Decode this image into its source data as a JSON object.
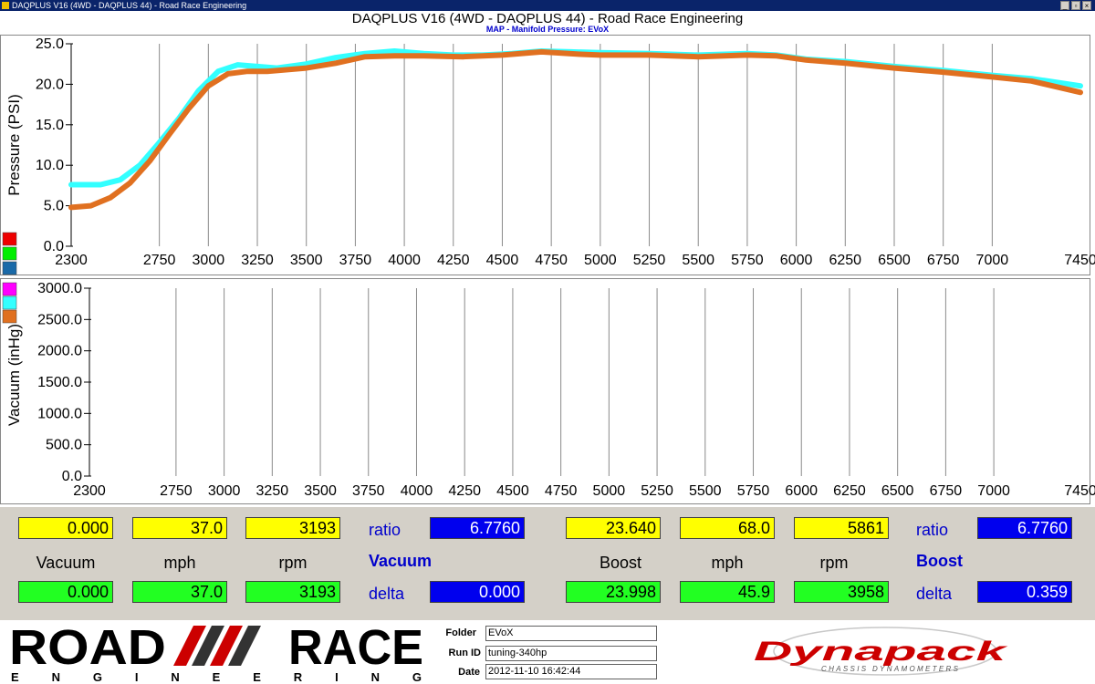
{
  "window": {
    "title": "DAQPLUS V16 (4WD - DAQPLUS 44) - Road Race Engineering",
    "min_glyph": "_",
    "max_glyph": "▫",
    "close_glyph": "×"
  },
  "chart_header": {
    "title": "DAQPLUS V16 (4WD - DAQPLUS 44) - Road Race Engineering",
    "subtitle": "MAP - Manifold Pressure: EVoX"
  },
  "colors": {
    "cyan_trace": "#33ffff",
    "orange_trace": "#e07020",
    "swatches": [
      "#ee0000",
      "#00ee00",
      "#1a6aa8",
      "#ff00ff",
      "#33ffff",
      "#e07020"
    ]
  },
  "chart_data": [
    {
      "type": "line",
      "ylabel": "Pressure (PSI)",
      "xlim": [
        2300,
        7450
      ],
      "ylim": [
        0,
        25
      ],
      "x_ticks": [
        "2300",
        "2750",
        "3000",
        "3250",
        "3500",
        "3750",
        "4000",
        "4250",
        "4500",
        "4750",
        "5000",
        "5250",
        "5500",
        "5750",
        "6000",
        "6250",
        "6500",
        "6750",
        "7000",
        "7450"
      ],
      "y_ticks": [
        "25.0",
        "20.0",
        "15.0",
        "10.0",
        "5.0",
        "0.0"
      ],
      "grid": true,
      "series": [
        {
          "color": "#33ffff",
          "points": [
            [
              2300,
              7.6
            ],
            [
              2450,
              7.6
            ],
            [
              2550,
              8.2
            ],
            [
              2650,
              10.0
            ],
            [
              2750,
              12.8
            ],
            [
              2850,
              15.8
            ],
            [
              2950,
              19.2
            ],
            [
              3050,
              21.6
            ],
            [
              3150,
              22.4
            ],
            [
              3250,
              22.2
            ],
            [
              3350,
              22.0
            ],
            [
              3500,
              22.5
            ],
            [
              3650,
              23.3
            ],
            [
              3800,
              23.8
            ],
            [
              3950,
              24.1
            ],
            [
              4100,
              23.8
            ],
            [
              4250,
              23.6
            ],
            [
              4400,
              23.6
            ],
            [
              4550,
              23.8
            ],
            [
              4700,
              24.1
            ],
            [
              4850,
              24.0
            ],
            [
              5000,
              23.9
            ],
            [
              5250,
              23.8
            ],
            [
              5500,
              23.6
            ],
            [
              5750,
              23.8
            ],
            [
              5900,
              23.6
            ],
            [
              6050,
              23.1
            ],
            [
              6250,
              22.8
            ],
            [
              6500,
              22.2
            ],
            [
              6750,
              21.7
            ],
            [
              7000,
              21.1
            ],
            [
              7200,
              20.7
            ],
            [
              7450,
              19.8
            ]
          ]
        },
        {
          "color": "#e07020",
          "points": [
            [
              2300,
              4.8
            ],
            [
              2400,
              5.0
            ],
            [
              2500,
              6.0
            ],
            [
              2600,
              7.8
            ],
            [
              2700,
              10.5
            ],
            [
              2800,
              13.8
            ],
            [
              2900,
              17.0
            ],
            [
              3000,
              19.8
            ],
            [
              3100,
              21.3
            ],
            [
              3200,
              21.6
            ],
            [
              3300,
              21.6
            ],
            [
              3500,
              22.0
            ],
            [
              3650,
              22.6
            ],
            [
              3800,
              23.4
            ],
            [
              3950,
              23.5
            ],
            [
              4100,
              23.5
            ],
            [
              4300,
              23.4
            ],
            [
              4500,
              23.6
            ],
            [
              4700,
              24.0
            ],
            [
              4900,
              23.7
            ],
            [
              5000,
              23.6
            ],
            [
              5250,
              23.6
            ],
            [
              5500,
              23.4
            ],
            [
              5750,
              23.6
            ],
            [
              5900,
              23.5
            ],
            [
              6050,
              23.0
            ],
            [
              6250,
              22.6
            ],
            [
              6500,
              22.0
            ],
            [
              6750,
              21.5
            ],
            [
              7000,
              20.9
            ],
            [
              7200,
              20.4
            ],
            [
              7450,
              19.0
            ]
          ]
        }
      ]
    },
    {
      "type": "line",
      "ylabel": "Vacuum (inHg)",
      "xlim": [
        2300,
        7450
      ],
      "ylim": [
        0,
        3000
      ],
      "x_ticks": [
        "2300",
        "2750",
        "3000",
        "3250",
        "3500",
        "3750",
        "4000",
        "4250",
        "4500",
        "4750",
        "5000",
        "5250",
        "5500",
        "5750",
        "6000",
        "6250",
        "6500",
        "6750",
        "7000",
        "7450"
      ],
      "y_ticks": [
        "3000.0",
        "2500.0",
        "2000.0",
        "1500.0",
        "1000.0",
        "500.0",
        "0.0"
      ],
      "grid": true,
      "series": []
    }
  ],
  "readouts": {
    "left": {
      "top_values": [
        "0.000",
        "37.0",
        "3193"
      ],
      "labels": [
        "Vacuum",
        "mph",
        "rpm"
      ],
      "bottom_values": [
        "0.000",
        "37.0",
        "3193"
      ],
      "ratio_label": "ratio",
      "ratio_value": "6.7760",
      "mode_label": "Vacuum",
      "delta_label": "delta",
      "delta_value": "0.000"
    },
    "right": {
      "top_values": [
        "23.640",
        "68.0",
        "5861"
      ],
      "labels": [
        "Boost",
        "mph",
        "rpm"
      ],
      "bottom_values": [
        "23.998",
        "45.9",
        "3958"
      ],
      "ratio_label": "ratio",
      "ratio_value": "6.7760",
      "mode_label": "Boost",
      "delta_label": "delta",
      "delta_value": "0.359"
    }
  },
  "footer": {
    "folder_label": "Folder",
    "folder_value": "EVoX",
    "runid_label": "Run ID",
    "runid_value": "tuning-340hp",
    "date_label": "Date",
    "date_value": "2012-11-10 16:42:44"
  },
  "logos": {
    "left_top": "ROAD",
    "left_top2": "RACE",
    "left_bottom": "ENGINEERING",
    "right_main": "Dynapack",
    "right_sub": "CHASSIS DYNAMOMETERS"
  }
}
